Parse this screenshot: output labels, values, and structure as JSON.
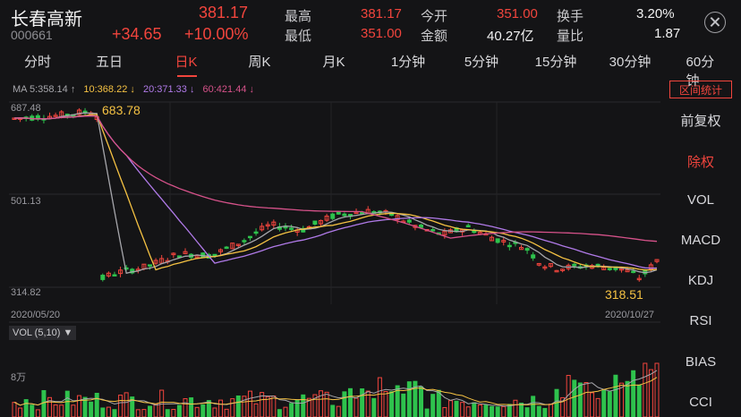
{
  "stock": {
    "name": "长春高新",
    "code": "000661",
    "price": "381.17",
    "change": "+34.65",
    "change_pct": "+10.00%"
  },
  "quote": {
    "high_label": "最高",
    "high": "381.17",
    "low_label": "最低",
    "low": "351.00",
    "open_label": "今开",
    "open": "351.00",
    "amount_label": "金额",
    "amount": "40.27亿",
    "turnover_label": "换手",
    "turnover": "3.20%",
    "vol_ratio_label": "量比",
    "vol_ratio": "1.87"
  },
  "tabs": [
    "分时",
    "五日",
    "日K",
    "周K",
    "月K",
    "1分钟",
    "5分钟",
    "15分钟",
    "30分钟",
    "60分钟"
  ],
  "active_tab": "日K",
  "ma_legend": {
    "ma5": "MA 5:358.14 ↑",
    "ma10": "10:368.22 ↓",
    "ma20": "20:371.33 ↓",
    "ma60": "60:421.44 ↓",
    "colors": {
      "ma5": "#a6a6ab",
      "ma10": "#f5c243",
      "ma20": "#b07ae8",
      "ma60": "#d6528a"
    }
  },
  "range_button": "区间统计",
  "side_menu": [
    "前复权",
    "除权",
    "VOL",
    "MACD",
    "KDJ",
    "RSI",
    "BIAS",
    "CCI"
  ],
  "side_active": "除权",
  "price_axis": {
    "top": "687.48",
    "mid": "501.13",
    "bottom": "314.82"
  },
  "date_axis": {
    "start": "2020/05/20",
    "end": "2020/10/27"
  },
  "annotations": {
    "high": "683.78",
    "low": "318.51"
  },
  "vol_legend": "VOL (5,10) ▼",
  "vol_axis": {
    "tick": "8万"
  },
  "colors": {
    "up": "#f2453d",
    "down": "#2ec24d",
    "background": "#141416"
  }
}
